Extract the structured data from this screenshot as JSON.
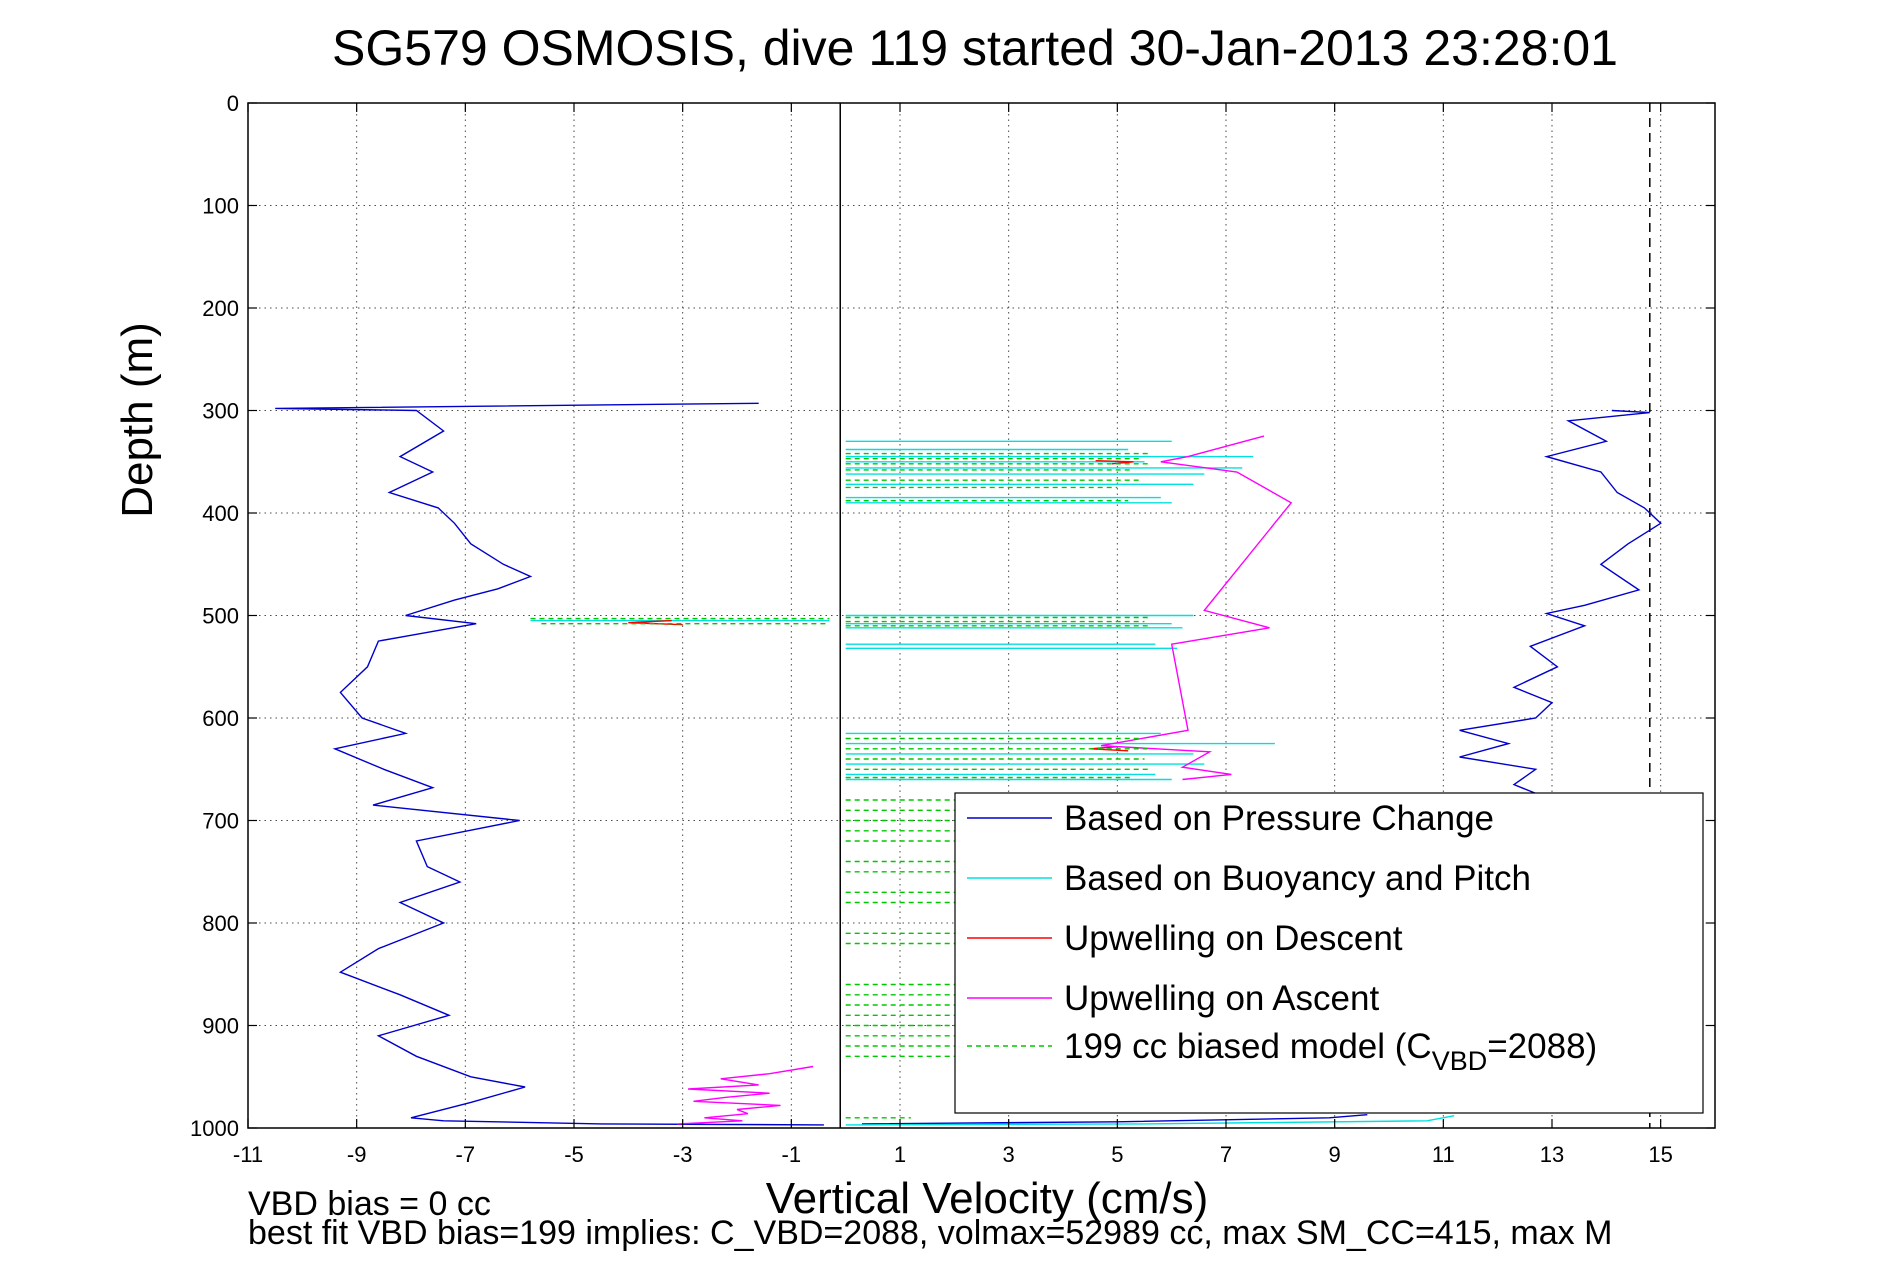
{
  "chart_data": {
    "type": "line",
    "title": "SG579 OSMOSIS, dive 119 started 30-Jan-2013 23:28:01",
    "xlabel": "Vertical Velocity (cm/s)",
    "ylabel": "Depth (m)",
    "xlim": [
      -11,
      16
    ],
    "ylim": [
      0,
      1000
    ],
    "y_reversed": true,
    "grid": true,
    "x_ticks": [
      "-11",
      "-9",
      "-7",
      "-5",
      "-3",
      "-1",
      "1",
      "3",
      "5",
      "7",
      "9",
      "11",
      "13",
      "15"
    ],
    "y_ticks": [
      "0",
      "100",
      "200",
      "300",
      "400",
      "500",
      "600",
      "700",
      "800",
      "900",
      "1000"
    ],
    "legend_position": "bottom-right",
    "series": [
      {
        "name": "Based on Pressure Change",
        "color": "#0000cc",
        "style": "solid",
        "segments": [
          [
            [
              -1.6,
              293
            ],
            [
              -10.5,
              298
            ],
            [
              -7.9,
              300
            ],
            [
              -7.4,
              320
            ],
            [
              -8.2,
              345
            ],
            [
              -7.6,
              360
            ],
            [
              -8.4,
              380
            ],
            [
              -7.5,
              395
            ],
            [
              -7.2,
              410
            ],
            [
              -6.9,
              430
            ],
            [
              -6.3,
              450
            ],
            [
              -5.8,
              462
            ],
            [
              -6.4,
              474
            ],
            [
              -7.2,
              485
            ],
            [
              -8.1,
              500
            ],
            [
              -6.8,
              508
            ],
            [
              -8.6,
              525
            ],
            [
              -8.8,
              550
            ],
            [
              -9.3,
              575
            ],
            [
              -8.9,
              600
            ],
            [
              -8.1,
              615
            ],
            [
              -9.4,
              630
            ],
            [
              -8.5,
              650
            ],
            [
              -7.6,
              668
            ],
            [
              -8.7,
              685
            ],
            [
              -6.0,
              700
            ],
            [
              -7.9,
              720
            ],
            [
              -7.7,
              745
            ],
            [
              -7.1,
              760
            ],
            [
              -8.2,
              780
            ],
            [
              -7.4,
              800
            ],
            [
              -8.6,
              825
            ],
            [
              -9.3,
              848
            ],
            [
              -8.2,
              870
            ],
            [
              -7.3,
              890
            ],
            [
              -8.6,
              910
            ],
            [
              -7.9,
              930
            ],
            [
              -6.9,
              950
            ],
            [
              -5.9,
              960
            ],
            [
              -6.9,
              975
            ],
            [
              -8.0,
              990
            ],
            [
              -7.4,
              993
            ],
            [
              -4.5,
              996
            ],
            [
              -0.4,
              997
            ]
          ],
          [
            [
              14.1,
              300
            ],
            [
              14.8,
              302
            ],
            [
              13.3,
              310
            ],
            [
              14.0,
              330
            ],
            [
              12.9,
              345
            ],
            [
              13.9,
              360
            ],
            [
              14.2,
              380
            ],
            [
              14.7,
              395
            ],
            [
              15.0,
              410
            ],
            [
              14.4,
              430
            ],
            [
              13.9,
              450
            ],
            [
              14.6,
              475
            ],
            [
              13.6,
              490
            ],
            [
              12.9,
              498
            ],
            [
              13.6,
              510
            ],
            [
              12.6,
              530
            ],
            [
              13.1,
              550
            ],
            [
              12.3,
              570
            ],
            [
              13.0,
              585
            ],
            [
              12.7,
              600
            ],
            [
              11.3,
              612
            ],
            [
              12.2,
              625
            ],
            [
              11.3,
              638
            ],
            [
              12.7,
              650
            ],
            [
              12.3,
              665
            ],
            [
              13.0,
              680
            ],
            [
              12.9,
              690
            ]
          ],
          [
            [
              0.3,
              996
            ],
            [
              5.0,
              994
            ],
            [
              8.9,
              990
            ],
            [
              9.6,
              987
            ]
          ]
        ]
      },
      {
        "name": "Based on Buoyancy and Pitch",
        "color": "#00e0e0",
        "style": "solid",
        "segments": [
          [
            [
              -5.8,
              505
            ],
            [
              -0.3,
              505
            ]
          ],
          [
            [
              0.0,
              330
            ],
            [
              6.0,
              330
            ]
          ],
          [
            [
              0.0,
              338
            ],
            [
              5.2,
              338
            ]
          ],
          [
            [
              0.0,
              345
            ],
            [
              7.5,
              345
            ]
          ],
          [
            [
              0.0,
              350
            ],
            [
              5.5,
              350
            ]
          ],
          [
            [
              0.0,
              356
            ],
            [
              7.3,
              356
            ]
          ],
          [
            [
              0.0,
              362
            ],
            [
              6.6,
              362
            ]
          ],
          [
            [
              0.0,
              372
            ],
            [
              6.4,
              372
            ]
          ],
          [
            [
              0.0,
              385
            ],
            [
              5.8,
              385
            ]
          ],
          [
            [
              0.0,
              390
            ],
            [
              6.0,
              390
            ]
          ],
          [
            [
              0.0,
              500
            ],
            [
              6.4,
              500
            ]
          ],
          [
            [
              0.0,
              508
            ],
            [
              6.0,
              508
            ]
          ],
          [
            [
              0.0,
              512
            ],
            [
              6.2,
              512
            ]
          ],
          [
            [
              0.0,
              528
            ],
            [
              5.7,
              528
            ]
          ],
          [
            [
              0.0,
              532
            ],
            [
              6.1,
              532
            ]
          ],
          [
            [
              0.0,
              615
            ],
            [
              5.8,
              615
            ]
          ],
          [
            [
              0.0,
              625
            ],
            [
              7.9,
              625
            ]
          ],
          [
            [
              0.0,
              635
            ],
            [
              6.4,
              635
            ]
          ],
          [
            [
              0.0,
              645
            ],
            [
              6.6,
              645
            ]
          ],
          [
            [
              0.0,
              655
            ],
            [
              5.7,
              655
            ]
          ],
          [
            [
              0.0,
              660
            ],
            [
              6.0,
              660
            ]
          ],
          [
            [
              0.0,
              997
            ],
            [
              5.5,
              996
            ],
            [
              10.7,
              993
            ],
            [
              11.2,
              988
            ]
          ]
        ]
      },
      {
        "name": "Upwelling on Descent",
        "color": "#ff0000",
        "style": "solid",
        "segments": [
          [
            [
              -3.2,
              505
            ],
            [
              -4.0,
              507
            ],
            [
              -3.0,
              509
            ]
          ],
          [
            [
              4.6,
              349
            ],
            [
              5.3,
              350
            ],
            [
              4.9,
              352
            ]
          ],
          [
            [
              5.0,
              628
            ],
            [
              4.5,
              630
            ],
            [
              5.2,
              632
            ]
          ]
        ]
      },
      {
        "name": "Upwelling on Ascent",
        "color": "#ff00ff",
        "style": "solid",
        "segments": [
          [
            [
              -0.6,
              940
            ],
            [
              -1.4,
              947
            ],
            [
              -2.3,
              952
            ],
            [
              -1.6,
              958
            ],
            [
              -2.9,
              962
            ],
            [
              -1.4,
              966
            ],
            [
              -2.2,
              970
            ],
            [
              -2.8,
              974
            ],
            [
              -1.2,
              978
            ],
            [
              -2.0,
              982
            ],
            [
              -1.8,
              986
            ],
            [
              -2.6,
              990
            ],
            [
              -1.9,
              993
            ],
            [
              -3.1,
              996
            ]
          ],
          [
            [
              7.7,
              325
            ],
            [
              6.3,
              345
            ],
            [
              5.8,
              350
            ],
            [
              7.2,
              360
            ],
            [
              8.2,
              390
            ],
            [
              6.6,
              495
            ],
            [
              7.8,
              512
            ],
            [
              6.0,
              528
            ],
            [
              6.3,
              612
            ],
            [
              4.7,
              627
            ],
            [
              6.7,
              633
            ],
            [
              6.2,
              648
            ],
            [
              7.1,
              655
            ],
            [
              6.2,
              660
            ]
          ]
        ]
      },
      {
        "name": "199 cc biased model (CVBD=2088)",
        "color": "#00c800",
        "style": "dashed",
        "segments": [
          [
            [
              -5.8,
              503
            ],
            [
              -0.3,
              503
            ]
          ],
          [
            [
              -5.6,
              508
            ],
            [
              -0.3,
              508
            ]
          ],
          [
            [
              0.0,
              342
            ],
            [
              5.6,
              342
            ]
          ],
          [
            [
              0.0,
              347
            ],
            [
              5.4,
              347
            ]
          ],
          [
            [
              0.0,
              352
            ],
            [
              5.6,
              352
            ]
          ],
          [
            [
              0.0,
              358
            ],
            [
              5.3,
              358
            ]
          ],
          [
            [
              0.0,
              368
            ],
            [
              5.4,
              368
            ]
          ],
          [
            [
              0.0,
              375
            ],
            [
              5.0,
              375
            ]
          ],
          [
            [
              0.0,
              388
            ],
            [
              5.2,
              388
            ]
          ],
          [
            [
              0.0,
              502
            ],
            [
              5.6,
              502
            ]
          ],
          [
            [
              0.0,
              506
            ],
            [
              5.5,
              506
            ]
          ],
          [
            [
              0.0,
              510
            ],
            [
              5.6,
              510
            ]
          ],
          [
            [
              0.0,
              620
            ],
            [
              5.4,
              620
            ]
          ],
          [
            [
              0.0,
              630
            ],
            [
              5.6,
              630
            ]
          ],
          [
            [
              0.0,
              640
            ],
            [
              5.5,
              640
            ]
          ],
          [
            [
              0.0,
              650
            ],
            [
              5.6,
              650
            ]
          ],
          [
            [
              0.0,
              658
            ],
            [
              5.3,
              658
            ]
          ],
          [
            [
              0.0,
              680
            ],
            [
              2.2,
              680
            ]
          ],
          [
            [
              0.0,
              690
            ],
            [
              2.2,
              690
            ]
          ],
          [
            [
              0.0,
              700
            ],
            [
              2.2,
              700
            ]
          ],
          [
            [
              0.0,
              710
            ],
            [
              2.2,
              710
            ]
          ],
          [
            [
              0.0,
              720
            ],
            [
              2.2,
              720
            ]
          ],
          [
            [
              0.0,
              740
            ],
            [
              2.2,
              740
            ]
          ],
          [
            [
              0.0,
              750
            ],
            [
              2.2,
              750
            ]
          ],
          [
            [
              0.0,
              770
            ],
            [
              2.2,
              770
            ]
          ],
          [
            [
              0.0,
              780
            ],
            [
              2.2,
              780
            ]
          ],
          [
            [
              0.0,
              810
            ],
            [
              2.2,
              810
            ]
          ],
          [
            [
              0.0,
              820
            ],
            [
              2.2,
              820
            ]
          ],
          [
            [
              0.0,
              860
            ],
            [
              2.2,
              860
            ]
          ],
          [
            [
              0.0,
              870
            ],
            [
              2.2,
              870
            ]
          ],
          [
            [
              0.0,
              880
            ],
            [
              2.2,
              880
            ]
          ],
          [
            [
              0.0,
              890
            ],
            [
              2.2,
              890
            ]
          ],
          [
            [
              0.0,
              900
            ],
            [
              2.2,
              900
            ]
          ],
          [
            [
              0.0,
              910
            ],
            [
              2.2,
              910
            ]
          ],
          [
            [
              0.0,
              920
            ],
            [
              2.2,
              920
            ]
          ],
          [
            [
              0.0,
              930
            ],
            [
              2.2,
              930
            ]
          ],
          [
            [
              0.0,
              990
            ],
            [
              1.2,
              990
            ]
          ]
        ]
      }
    ],
    "reference_lines": [
      {
        "orientation": "vertical",
        "x": -0.1,
        "color": "#000000",
        "style": "solid"
      },
      {
        "orientation": "vertical",
        "x": 14.8,
        "color": "#000000",
        "style": "dashed"
      }
    ],
    "legend_entries": [
      {
        "label": "Based on Pressure Change",
        "color": "#0000cc",
        "style": "solid"
      },
      {
        "label": "Based on Buoyancy and Pitch",
        "color": "#00e0e0",
        "style": "solid"
      },
      {
        "label": "Upwelling on Descent",
        "color": "#ff0000",
        "style": "solid"
      },
      {
        "label": "Upwelling on Ascent",
        "color": "#ff00ff",
        "style": "solid"
      },
      {
        "label_main": "199 cc biased model (C",
        "label_sub": "VBD",
        "label_tail": "=2088)",
        "color": "#00c800",
        "style": "dashed"
      }
    ]
  },
  "footer": {
    "line1": "VBD bias = 0 cc",
    "line2": "best fit VBD bias=199 implies: C_VBD=2088, volmax=52989 cc, max SM_CC=415, max M"
  }
}
